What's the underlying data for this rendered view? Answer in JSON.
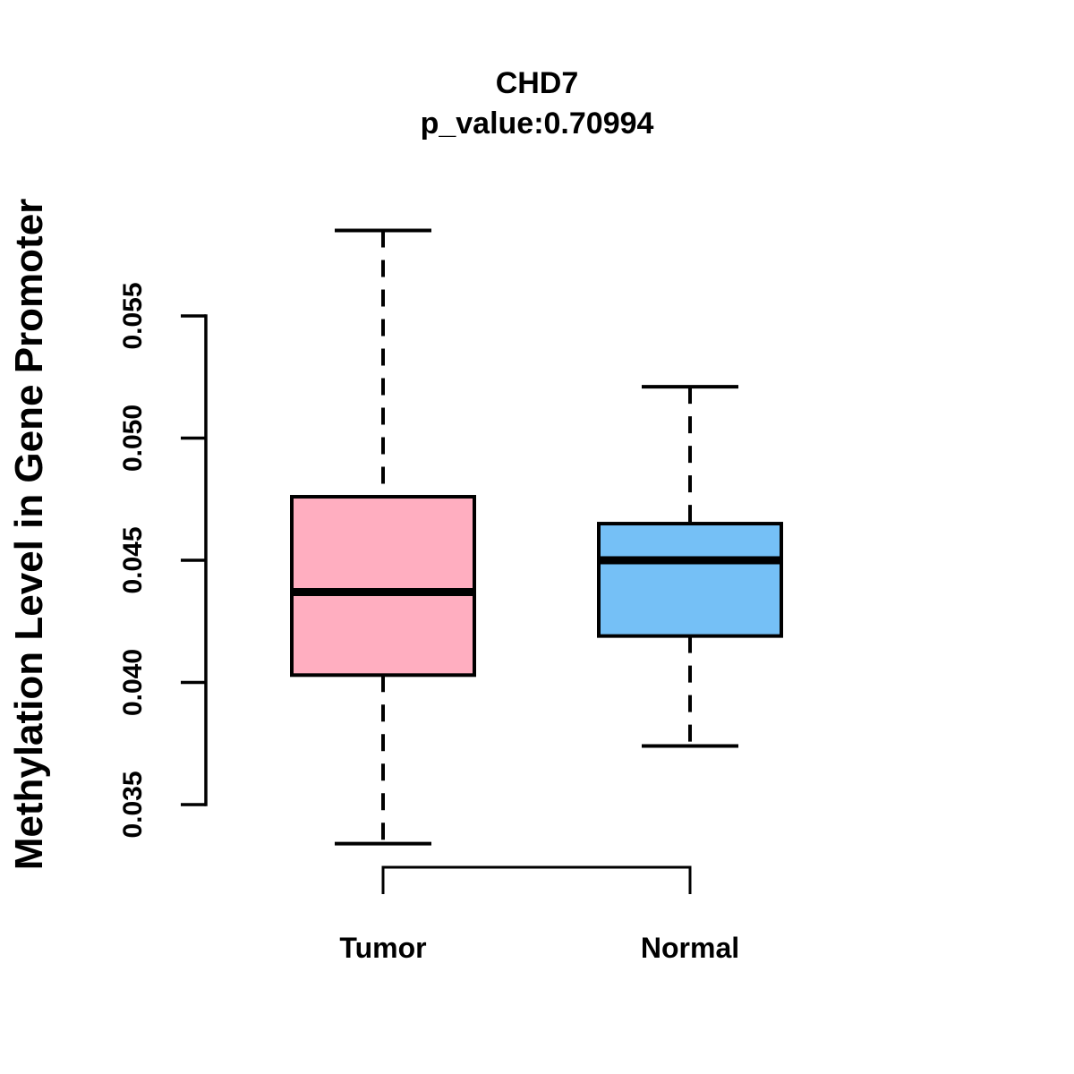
{
  "figure": {
    "title": "CHD7",
    "subtitle": "p_value:0.70994",
    "y_axis_title": "Methylation Level in Gene Promoter"
  },
  "chart_data": {
    "type": "boxplot",
    "title": "CHD7",
    "subtitle": "p_value:0.70994",
    "ylabel": "Methylation Level in Gene Promoter",
    "xlabel": "",
    "categories": [
      "Tumor",
      "Normal"
    ],
    "yticks": {
      "values": [
        0.035,
        0.04,
        0.045,
        0.05,
        0.055
      ],
      "labels": [
        "0.035",
        "0.040",
        "0.045",
        "0.050",
        "0.055"
      ]
    },
    "ylim_shown": [
      0.0334,
      0.0585
    ],
    "grid": false,
    "legend": null,
    "whisker_style": "dashed",
    "line_color": "#000000",
    "background_color": "#FFFFFF",
    "series": [
      {
        "name": "Tumor",
        "fill_color": "#FFAEC0",
        "whisker_low": 0.0334,
        "q1": 0.0403,
        "median": 0.0437,
        "q3": 0.0476,
        "whisker_high": 0.0585
      },
      {
        "name": "Normal",
        "fill_color": "#75C0F6",
        "whisker_low": 0.0374,
        "q1": 0.0419,
        "median": 0.045,
        "q3": 0.0465,
        "whisker_high": 0.0521
      }
    ]
  }
}
